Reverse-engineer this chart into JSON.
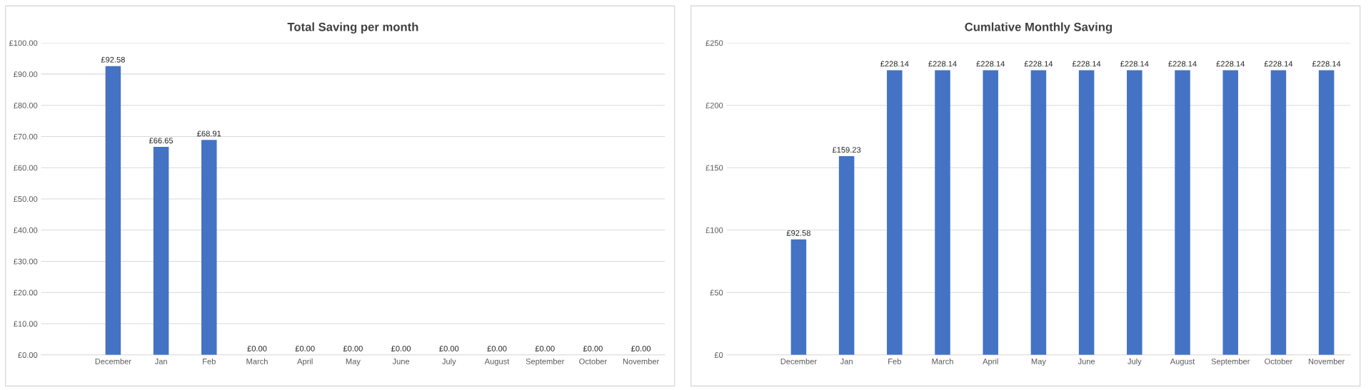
{
  "chart_data": [
    {
      "type": "bar",
      "title": "Total Saving per month",
      "categories": [
        null,
        "December",
        "Jan",
        "Feb",
        "March",
        "April",
        "May",
        "June",
        "July",
        "August",
        "September",
        "October",
        "November"
      ],
      "color": "#4472c4",
      "values": [
        null,
        92.58,
        66.65,
        68.91,
        0,
        0,
        0,
        0,
        0,
        0,
        0,
        0,
        0
      ],
      "value_labels": [
        null,
        "£92.58",
        "£66.65",
        "£68.91",
        "£0.00",
        "£0.00",
        "£0.00",
        "£0.00",
        "£0.00",
        "£0.00",
        "£0.00",
        "£0.00",
        "£0.00"
      ],
      "ylim": [
        0,
        100
      ],
      "yticks": [
        {
          "value": 0,
          "label": "£0.00"
        },
        {
          "value": 10,
          "label": "£10.00"
        },
        {
          "value": 20,
          "label": "£20.00"
        },
        {
          "value": 30,
          "label": "£30.00"
        },
        {
          "value": 40,
          "label": "£40.00"
        },
        {
          "value": 50,
          "label": "£50.00"
        },
        {
          "value": 60,
          "label": "£60.00"
        },
        {
          "value": 70,
          "label": "£70.00"
        },
        {
          "value": 80,
          "label": "£80.00"
        },
        {
          "value": 90,
          "label": "£90.00"
        },
        {
          "value": 100,
          "label": "£100.00"
        }
      ],
      "grid": "y"
    },
    {
      "type": "bar",
      "title": "Cumlative Monthly Saving",
      "categories": [
        null,
        "December",
        "Jan",
        "Feb",
        "March",
        "April",
        "May",
        "June",
        "July",
        "August",
        "September",
        "October",
        "November"
      ],
      "color": "#4472c4",
      "values": [
        null,
        92.58,
        159.23,
        228.14,
        228.14,
        228.14,
        228.14,
        228.14,
        228.14,
        228.14,
        228.14,
        228.14,
        228.14
      ],
      "value_labels": [
        null,
        "£92.58",
        "£159.23",
        "£228.14",
        "£228.14",
        "£228.14",
        "£228.14",
        "£228.14",
        "£228.14",
        "£228.14",
        "£228.14",
        "£228.14",
        "£228.14"
      ],
      "ylim": [
        0,
        250
      ],
      "yticks": [
        {
          "value": 0,
          "label": "£0"
        },
        {
          "value": 50,
          "label": "£50"
        },
        {
          "value": 100,
          "label": "£100"
        },
        {
          "value": 150,
          "label": "£150"
        },
        {
          "value": 200,
          "label": "£200"
        },
        {
          "value": 250,
          "label": "£250"
        }
      ],
      "grid": "y"
    }
  ]
}
